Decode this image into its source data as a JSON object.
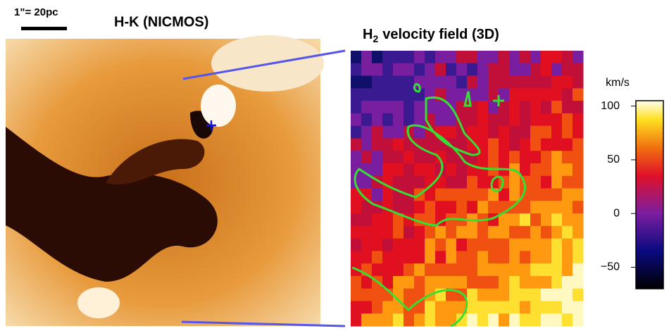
{
  "scale_bar": "1\"= 20pc",
  "left_panel": {
    "title": "H-K (NICMOS)"
  },
  "right_panel": {
    "title_main": "H",
    "title_sub": "2",
    "title_rest": "velocity field (3D)"
  },
  "colorbar": {
    "label": "km/s",
    "lim": [
      -70,
      105
    ],
    "ticks": [
      100,
      50,
      0,
      {
        "value": -50,
        "label": "−50"
      }
    ]
  }
}
